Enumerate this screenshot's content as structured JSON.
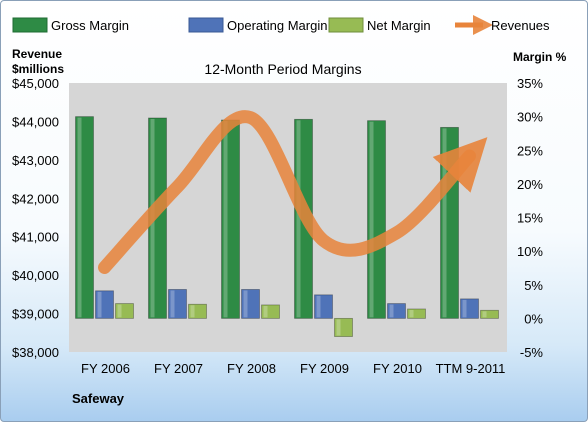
{
  "chart_data": {
    "type": "bar",
    "title": "12-Month Period Margins",
    "company": "Safeway",
    "left_axis": {
      "label_line1": "Revenue",
      "label_line2": "$millions",
      "ylim": [
        38000,
        45000
      ],
      "ticks": [
        "$38,000",
        "$39,000",
        "$40,000",
        "$41,000",
        "$42,000",
        "$43,000",
        "$44,000",
        "$45,000"
      ]
    },
    "right_axis": {
      "label": "Margin %",
      "ylim": [
        -5,
        35
      ],
      "ticks": [
        "-5%",
        "0%",
        "5%",
        "10%",
        "15%",
        "20%",
        "25%",
        "30%",
        "35%"
      ]
    },
    "categories": [
      "FY 2006",
      "FY 2007",
      "FY 2008",
      "FY 2009",
      "FY 2010",
      "TTM 9-2011"
    ],
    "series": [
      {
        "name": "Gross Margin",
        "axis": "right",
        "kind": "bar",
        "color": "#2e8b45",
        "values": [
          30.0,
          29.8,
          29.5,
          29.6,
          29.4,
          28.4
        ]
      },
      {
        "name": "Operating Margin",
        "axis": "right",
        "kind": "bar",
        "color": "#4f73b8",
        "values": [
          4.1,
          4.3,
          4.3,
          3.5,
          2.2,
          2.9
        ]
      },
      {
        "name": "Net Margin",
        "axis": "right",
        "kind": "bar",
        "color": "#97bb54",
        "values": [
          2.2,
          2.1,
          2.0,
          -2.7,
          1.4,
          1.2
        ]
      },
      {
        "name": "Revenues",
        "axis": "left",
        "kind": "line",
        "color": "#e8843b",
        "values": [
          40200,
          42300,
          44100,
          40900,
          41100,
          43100
        ]
      }
    ],
    "legend_position": "top",
    "grid": false
  }
}
